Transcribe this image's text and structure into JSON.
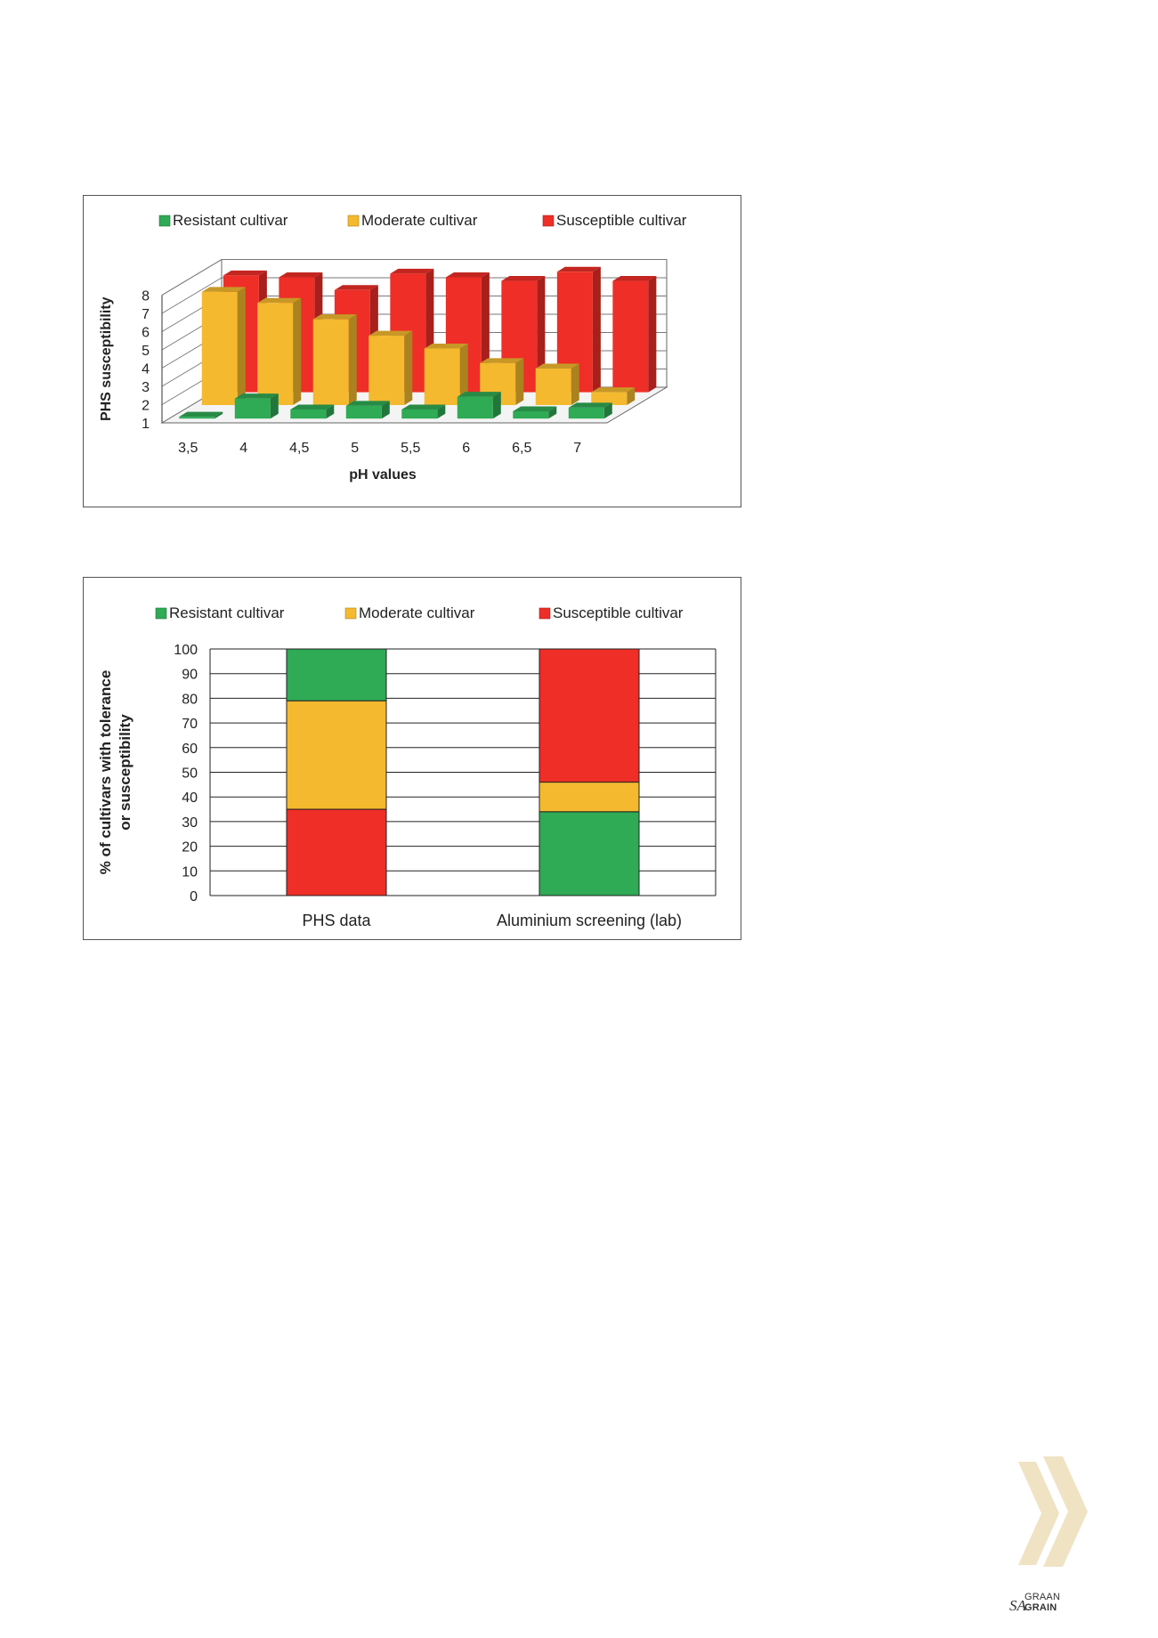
{
  "chart_data": [
    {
      "type": "bar",
      "projection": "3d",
      "categories": [
        "3,5",
        "4",
        "4,5",
        "5",
        "5,5",
        "6",
        "6,5",
        "7"
      ],
      "series": [
        {
          "name": "Resistant cultivar",
          "color": "#2FAA55",
          "values": [
            1.1,
            2.1,
            1.5,
            1.7,
            1.5,
            2.2,
            1.4,
            1.6
          ]
        },
        {
          "name": "Moderate cultivar",
          "color": "#F4B92E",
          "values": [
            7.2,
            6.6,
            5.7,
            4.8,
            4.1,
            3.3,
            3.0,
            1.7
          ]
        },
        {
          "name": "Susceptible cultivar",
          "color": "#EE2E27",
          "values": [
            7.4,
            7.3,
            6.6,
            7.5,
            7.3,
            7.1,
            7.6,
            7.1
          ]
        }
      ],
      "xlabel": "pH values",
      "ylabel": "PHS susceptibility",
      "yticks": [
        "1",
        "2",
        "3",
        "4",
        "5",
        "6",
        "7",
        "8"
      ],
      "ylim": [
        1,
        8
      ],
      "legend": "top",
      "grid": true
    },
    {
      "type": "bar",
      "stacked": true,
      "categories": [
        "PHS data",
        "Aluminium screening (lab)"
      ],
      "series": [
        {
          "name": "Resistant cultivar",
          "color": "#2FAA55"
        },
        {
          "name": "Moderate cultivar",
          "color": "#F4B92E"
        },
        {
          "name": "Susceptible cultivar",
          "color": "#EE2E27"
        }
      ],
      "stacks": [
        {
          "category": "PHS data",
          "segments": [
            {
              "series": "Susceptible cultivar",
              "value": 35
            },
            {
              "series": "Moderate cultivar",
              "value": 44
            },
            {
              "series": "Resistant cultivar",
              "value": 21
            }
          ]
        },
        {
          "category": "Aluminium screening (lab)",
          "segments": [
            {
              "series": "Resistant cultivar",
              "value": 34
            },
            {
              "series": "Moderate cultivar",
              "value": 12
            },
            {
              "series": "Susceptible cultivar",
              "value": 54
            }
          ]
        }
      ],
      "ylabel_lines": [
        "% of cultivars with tolerance",
        "or susceptibility"
      ],
      "yticks": [
        "0",
        "10",
        "20",
        "30",
        "40",
        "50",
        "60",
        "70",
        "80",
        "90",
        "100"
      ],
      "ylim": [
        0,
        100
      ],
      "legend": "top",
      "grid": true
    }
  ],
  "logo": {
    "sa": "SA",
    "graan": "GRAAN",
    "grain": "GRAIN"
  },
  "decor": {
    "chevron_color": "#EFE3C4"
  }
}
